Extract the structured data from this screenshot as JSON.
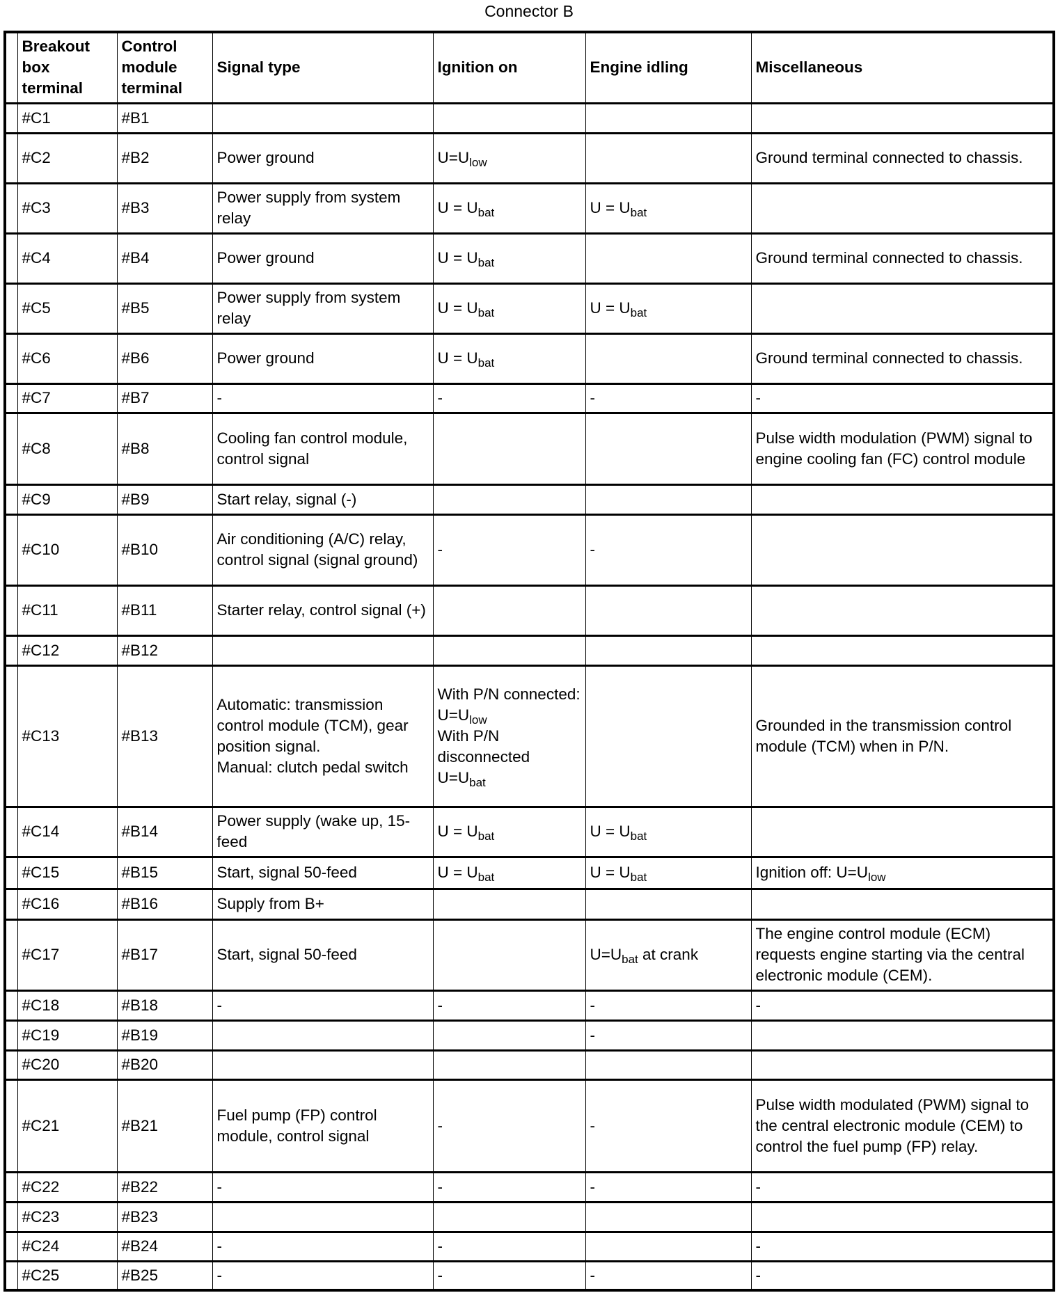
{
  "title": "Connector B",
  "columns": [
    "",
    "Breakout box terminal",
    "Control module terminal",
    "Signal type",
    "Ignition on",
    "Engine idling",
    "Miscellaneous"
  ],
  "rows": [
    {
      "breakout": "#C1",
      "module": "#B1",
      "signal": [],
      "ignition": [],
      "idling": [],
      "misc": []
    },
    {
      "breakout": "#C2",
      "module": "#B2",
      "signal": [
        {
          "text": "Power ground"
        }
      ],
      "ignition": [
        {
          "text": "U=U",
          "sub": "low"
        }
      ],
      "idling": [],
      "misc": [
        {
          "text": "Ground terminal connected to chassis."
        }
      ]
    },
    {
      "breakout": "#C3",
      "module": "#B3",
      "signal": [
        {
          "text": "Power supply from system relay"
        }
      ],
      "ignition": [
        {
          "text": "U = U",
          "sub": "bat"
        }
      ],
      "idling": [
        {
          "text": "U = U",
          "sub": "bat"
        }
      ],
      "misc": []
    },
    {
      "breakout": "#C4",
      "module": "#B4",
      "signal": [
        {
          "text": "Power ground"
        }
      ],
      "ignition": [
        {
          "text": "U = U",
          "sub": "bat"
        }
      ],
      "idling": [],
      "misc": [
        {
          "text": "Ground terminal connected to chassis."
        }
      ]
    },
    {
      "breakout": "#C5",
      "module": "#B5",
      "signal": [
        {
          "text": "Power supply from system relay"
        }
      ],
      "ignition": [
        {
          "text": "U = U",
          "sub": "bat"
        }
      ],
      "idling": [
        {
          "text": "U = U",
          "sub": "bat"
        }
      ],
      "misc": []
    },
    {
      "breakout": "#C6",
      "module": "#B6",
      "signal": [
        {
          "text": "Power ground"
        }
      ],
      "ignition": [
        {
          "text": "U = U",
          "sub": "bat"
        }
      ],
      "idling": [],
      "misc": [
        {
          "text": "Ground terminal connected to chassis."
        }
      ]
    },
    {
      "breakout": "#C7",
      "module": "#B7",
      "signal": [
        {
          "text": "-"
        }
      ],
      "ignition": [
        {
          "text": "-"
        }
      ],
      "idling": [
        {
          "text": "-"
        }
      ],
      "misc": [
        {
          "text": "-"
        }
      ]
    },
    {
      "breakout": "#C8",
      "module": "#B8",
      "signal": [
        {
          "text": "Cooling fan control module, control signal"
        }
      ],
      "ignition": [],
      "idling": [],
      "misc": [
        {
          "text": "Pulse width modulation (PWM) signal to engine cooling fan (FC) control module"
        }
      ]
    },
    {
      "breakout": "#C9",
      "module": "#B9",
      "signal": [
        {
          "text": "Start relay, signal (-)"
        }
      ],
      "ignition": [],
      "idling": [],
      "misc": []
    },
    {
      "breakout": "#C10",
      "module": "#B10",
      "signal": [
        {
          "text": "Air conditioning (A/C) relay, control signal (signal ground)"
        }
      ],
      "ignition": [
        {
          "text": "-"
        }
      ],
      "idling": [
        {
          "text": "-"
        }
      ],
      "misc": []
    },
    {
      "breakout": "#C11",
      "module": "#B11",
      "signal": [
        {
          "text": "Starter relay, control signal (+)"
        }
      ],
      "ignition": [],
      "idling": [],
      "misc": []
    },
    {
      "breakout": "#C12",
      "module": "#B12",
      "signal": [],
      "ignition": [],
      "idling": [],
      "misc": []
    },
    {
      "breakout": "#C13",
      "module": "#B13",
      "signal": [
        {
          "text": "Automatic: transmission control module (TCM), gear position signal."
        },
        {
          "text": "Manual: clutch pedal switch"
        }
      ],
      "ignition": [
        {
          "text": "With P/N connected: U=U",
          "sub": "low"
        },
        {
          "text": "With P/N disconnected U=U",
          "sub": "bat"
        }
      ],
      "idling": [],
      "misc": [
        {
          "text": "Grounded in the transmission control module (TCM) when in P/N."
        }
      ]
    },
    {
      "breakout": "#C14",
      "module": "#B14",
      "signal": [
        {
          "text": "Power supply (wake up, 15-feed"
        }
      ],
      "ignition": [
        {
          "text": "U = U",
          "sub": "bat"
        }
      ],
      "idling": [
        {
          "text": "U = U",
          "sub": "bat"
        }
      ],
      "misc": []
    },
    {
      "breakout": "#C15",
      "module": "#B15",
      "signal": [
        {
          "text": "Start, signal 50-feed"
        }
      ],
      "ignition": [
        {
          "text": "U = U",
          "sub": "bat"
        }
      ],
      "idling": [
        {
          "text": "U = U",
          "sub": "bat"
        }
      ],
      "misc": [
        {
          "text": "Ignition off: U=U",
          "sub": "low"
        }
      ]
    },
    {
      "breakout": "#C16",
      "module": "#B16",
      "signal": [
        {
          "text": "Supply from B+"
        }
      ],
      "ignition": [],
      "idling": [],
      "misc": []
    },
    {
      "breakout": "#C17",
      "module": "#B17",
      "signal": [
        {
          "text": "Start, signal 50-feed"
        }
      ],
      "ignition": [],
      "idling": [
        {
          "text": "U=U",
          "sub": "bat",
          "after": " at crank"
        }
      ],
      "misc": [
        {
          "text": "The engine control module (ECM) requests engine starting via the central electronic module (CEM)."
        }
      ]
    },
    {
      "breakout": "#C18",
      "module": "#B18",
      "signal": [
        {
          "text": "-"
        }
      ],
      "ignition": [
        {
          "text": "-"
        }
      ],
      "idling": [
        {
          "text": "-"
        }
      ],
      "misc": [
        {
          "text": "-"
        }
      ]
    },
    {
      "breakout": "#C19",
      "module": "#B19",
      "signal": [],
      "ignition": [],
      "idling": [
        {
          "text": "-"
        }
      ],
      "misc": []
    },
    {
      "breakout": "#C20",
      "module": "#B20",
      "signal": [],
      "ignition": [],
      "idling": [],
      "misc": []
    },
    {
      "breakout": "#C21",
      "module": "#B21",
      "signal": [
        {
          "text": "Fuel pump (FP) control module, control signal"
        }
      ],
      "ignition": [
        {
          "text": "-"
        }
      ],
      "idling": [
        {
          "text": "-"
        }
      ],
      "misc": [
        {
          "text": "Pulse width modulated (PWM) signal to the central electronic module (CEM) to control the fuel pump (FP) relay."
        }
      ]
    },
    {
      "breakout": "#C22",
      "module": "#B22",
      "signal": [
        {
          "text": "-"
        }
      ],
      "ignition": [
        {
          "text": "-"
        }
      ],
      "idling": [
        {
          "text": "-"
        }
      ],
      "misc": [
        {
          "text": "-"
        }
      ]
    },
    {
      "breakout": "#C23",
      "module": "#B23",
      "signal": [],
      "ignition": [],
      "idling": [],
      "misc": []
    },
    {
      "breakout": "#C24",
      "module": "#B24",
      "signal": [
        {
          "text": "-"
        }
      ],
      "ignition": [
        {
          "text": "-"
        }
      ],
      "idling": [],
      "misc": [
        {
          "text": "-"
        }
      ]
    },
    {
      "breakout": "#C25",
      "module": "#B25",
      "signal": [
        {
          "text": "-"
        }
      ],
      "ignition": [
        {
          "text": "-"
        }
      ],
      "idling": [
        {
          "text": "-"
        }
      ],
      "misc": [
        {
          "text": "-"
        }
      ]
    }
  ]
}
